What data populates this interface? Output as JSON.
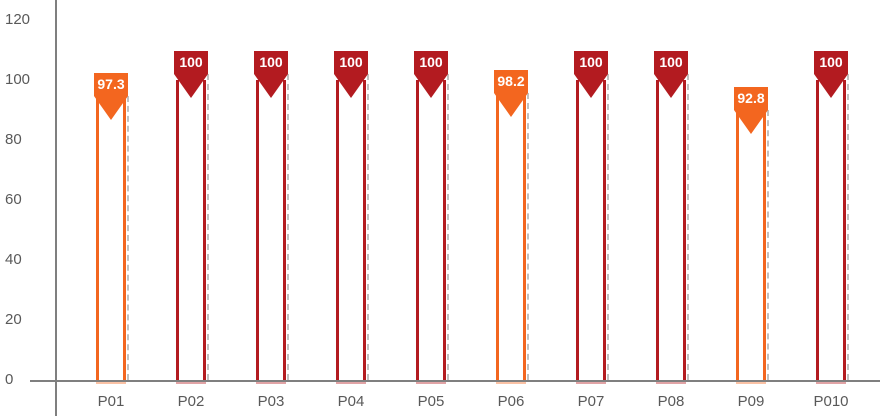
{
  "chart_data": {
    "type": "bar",
    "title": "",
    "xlabel": "",
    "ylabel": "",
    "categories": [
      "P01",
      "P02",
      "P03",
      "P04",
      "P05",
      "P06",
      "P07",
      "P08",
      "P09",
      "P010"
    ],
    "values": [
      97.3,
      100,
      100,
      100,
      100,
      98.2,
      100,
      100,
      92.8,
      100
    ],
    "bar_colors": [
      "#F3661F",
      "#B31B20",
      "#B31B20",
      "#B31B20",
      "#B31B20",
      "#F3661F",
      "#B31B20",
      "#B31B20",
      "#F3661F",
      "#B31B20"
    ],
    "yticks": [
      0,
      20,
      40,
      60,
      80,
      100,
      120
    ],
    "ylim": [
      0,
      120
    ],
    "grid": false,
    "legend": false,
    "palette": {
      "target_met": "#B31B20",
      "below_target": "#F3661F",
      "axis": "#7F7F7F",
      "tick_label": "#595959",
      "dashed_edge": "#C2C2C2",
      "marker_text": "#FFFFFF",
      "bar_fill": "#FFFFFF"
    }
  }
}
